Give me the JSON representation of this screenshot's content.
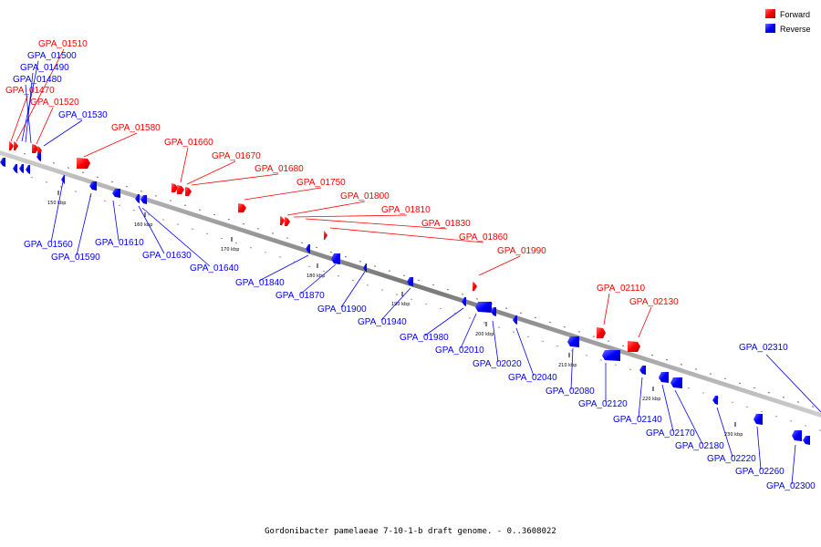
{
  "legend": [
    {
      "label": "Forward",
      "color": "#ff0000"
    },
    {
      "label": "Reverse",
      "color": "#0000ff"
    }
  ],
  "caption": "Gordonibacter pamelaeae 7-10-1-b draft genome. - 0..3608022",
  "axis_ticks": [
    "150 kbp",
    "160 kbp",
    "170 kbp",
    "180 kbp",
    "190 kbp",
    "200 kbp",
    "210 kbp",
    "220 kbp",
    "230 kbp"
  ],
  "forward_genes": [
    "GPA_01510",
    "GPA_01470",
    "GPA_01520",
    "GPA_01580",
    "GPA_01660",
    "GPA_01670",
    "GPA_01680",
    "GPA_01750",
    "GPA_01800",
    "GPA_01810",
    "GPA_01830",
    "GPA_01860",
    "GPA_01990",
    "GPA_02110",
    "GPA_02130"
  ],
  "reverse_genes": [
    "GPA_01500",
    "GPA_01490",
    "GPA_01480",
    "GPA_01530",
    "GPA_01560",
    "GPA_01590",
    "GPA_01610",
    "GPA_01630",
    "GPA_01640",
    "GPA_01840",
    "GPA_01870",
    "GPA_01900",
    "GPA_01940",
    "GPA_01980",
    "GPA_02010",
    "GPA_02020",
    "GPA_02040",
    "GPA_02080",
    "GPA_02120",
    "GPA_02140",
    "GPA_02170",
    "GPA_02180",
    "GPA_02220",
    "GPA_02260",
    "GPA_02300",
    "GPA_02310"
  ],
  "colors": {
    "forward": "#ff0000",
    "reverse": "#0000ff",
    "axis": "#888888"
  }
}
